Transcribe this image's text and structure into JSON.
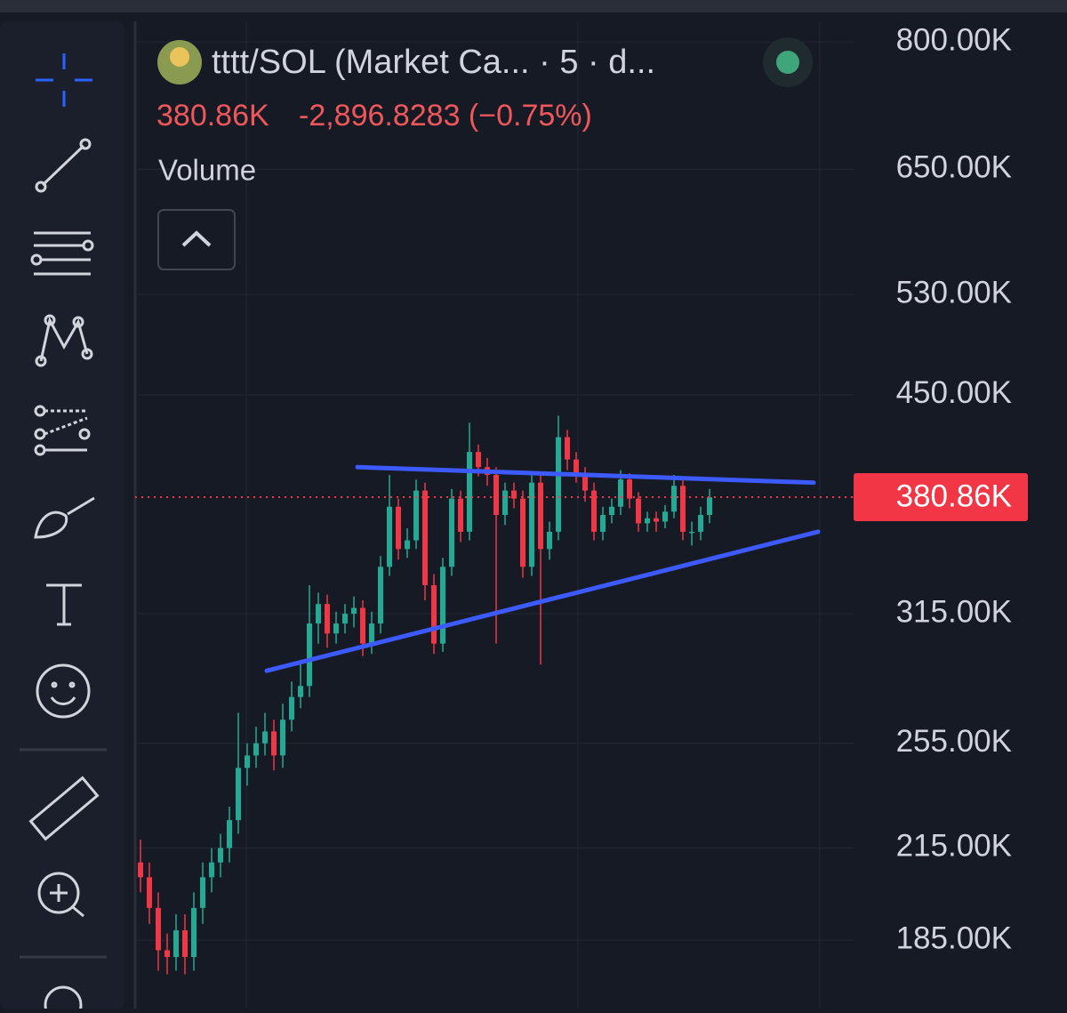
{
  "header": {
    "symbol": "tttt/SOL (Market Ca... · 5 · d...",
    "price": "380.86K",
    "change": "-2,896.8283 (−0.75%)",
    "indicator": "Volume"
  },
  "chart_data": {
    "type": "candlestick",
    "log_scale": true,
    "grid": true,
    "up_color": "#22ab94",
    "down_color": "#f23645",
    "open": [
      210000,
      205000,
      195000,
      182000,
      180000,
      188000,
      180000,
      195000,
      205000,
      210000,
      215000,
      225000,
      245000,
      250000,
      255000,
      260000,
      250000,
      265000,
      275000,
      280000,
      310000,
      320000,
      305000,
      310000,
      315000,
      318000,
      300000,
      310000,
      340000,
      375000,
      350000,
      355000,
      385000,
      330000,
      300000,
      340000,
      380000,
      360000,
      410000,
      400000,
      395000,
      370000,
      385000,
      380000,
      340000,
      390000,
      350000,
      360000,
      420000,
      405000,
      395000,
      385000,
      360000,
      370000,
      375000,
      392000,
      380000,
      365000,
      368000,
      366000,
      372000,
      388000,
      360000,
      360000,
      370000
    ],
    "high": [
      218000,
      210000,
      200000,
      187000,
      193000,
      193000,
      200000,
      210000,
      215000,
      220000,
      230000,
      268000,
      255000,
      262000,
      268000,
      265000,
      272000,
      282000,
      290000,
      330000,
      326000,
      325000,
      316000,
      320000,
      324000,
      322000,
      316000,
      346000,
      395000,
      380000,
      362000,
      392000,
      390000,
      336000,
      345000,
      386000,
      385000,
      430000,
      415000,
      406000,
      400000,
      390000,
      390000,
      385000,
      396000,
      395000,
      366000,
      435000,
      425000,
      410000,
      400000,
      390000,
      375000,
      380000,
      398000,
      396000,
      384000,
      372000,
      372000,
      376000,
      395000,
      392000,
      366000,
      375000,
      386000
    ],
    "low": [
      200000,
      190000,
      176000,
      175000,
      176000,
      175000,
      176000,
      190000,
      200000,
      205000,
      210000,
      220000,
      238000,
      245000,
      250000,
      244000,
      245000,
      260000,
      270000,
      275000,
      300000,
      298000,
      300000,
      305000,
      308000,
      294000,
      295000,
      305000,
      335000,
      344000,
      345000,
      350000,
      322000,
      295000,
      296000,
      335000,
      354000,
      355000,
      394000,
      388000,
      300000,
      364000,
      374000,
      334000,
      335000,
      290000,
      344000,
      355000,
      398000,
      390000,
      378000,
      355000,
      355000,
      365000,
      370000,
      374000,
      360000,
      360000,
      360000,
      362000,
      368000,
      355000,
      352000,
      355000,
      365000
    ],
    "close": [
      205000,
      195000,
      182000,
      180000,
      188000,
      180000,
      195000,
      205000,
      210000,
      215000,
      225000,
      245000,
      250000,
      255000,
      260000,
      250000,
      265000,
      275000,
      280000,
      310000,
      320000,
      305000,
      310000,
      315000,
      318000,
      300000,
      310000,
      340000,
      375000,
      350000,
      355000,
      385000,
      330000,
      300000,
      340000,
      380000,
      360000,
      410000,
      400000,
      395000,
      370000,
      385000,
      380000,
      340000,
      390000,
      350000,
      360000,
      420000,
      405000,
      395000,
      385000,
      360000,
      370000,
      375000,
      392000,
      380000,
      365000,
      368000,
      366000,
      372000,
      388000,
      360000,
      360000,
      370000,
      380860
    ],
    "ylim": [
      165500,
      826000
    ],
    "yticks": [
      {
        "value": 185000,
        "label": "185.00K"
      },
      {
        "value": 215000,
        "label": "215.00K"
      },
      {
        "value": 255000,
        "label": "255.00K"
      },
      {
        "value": 315000,
        "label": "315.00K"
      },
      {
        "value": 450000,
        "label": "450.00K"
      },
      {
        "value": 530000,
        "label": "530.00K"
      },
      {
        "value": 650000,
        "label": "650.00K"
      },
      {
        "value": 800000,
        "label": "800.00K"
      }
    ],
    "last_price": {
      "value": 380860,
      "label": "380.86K"
    },
    "last_price_color": "#f23645",
    "trend_lines": [
      {
        "x": [
          24.4,
          75.7
        ],
        "y": [
          400000,
          390000
        ],
        "color": "#3d5afe"
      },
      {
        "x": [
          14.2,
          76.2
        ],
        "y": [
          287000,
          360000
        ],
        "color": "#3d5afe"
      }
    ]
  }
}
